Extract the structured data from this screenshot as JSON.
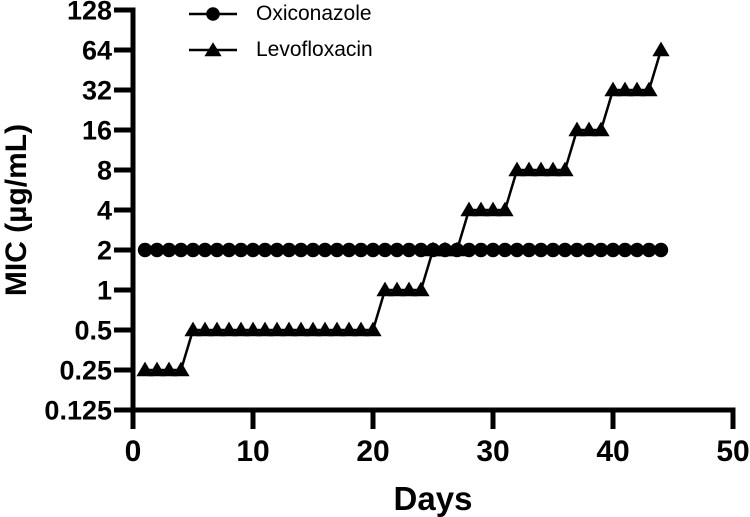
{
  "figure": {
    "background_color": "#ffffff",
    "ink_color": "#000000"
  },
  "legend": {
    "items": [
      {
        "label": "Oxiconazole",
        "marker": "circle-marker-icon"
      },
      {
        "label": "Levofloxacin",
        "marker": "triangle-marker-icon"
      }
    ]
  },
  "chart_data": {
    "type": "line",
    "title": "",
    "xlabel": "Days",
    "ylabel": "MIC (µg/mL)",
    "x_axis": {
      "min": 0,
      "max": 50,
      "tick_labels": [
        "0",
        "10",
        "20",
        "30",
        "40",
        "50"
      ]
    },
    "y_axis": {
      "scale": "log2",
      "min": 0.125,
      "max": 128,
      "tick_labels": [
        "128",
        "64",
        "32",
        "16",
        "8",
        "4",
        "2",
        "1",
        "0.5",
        "0.25",
        "0.125"
      ]
    },
    "grid": false,
    "legend_position": "top-left-inside",
    "series": [
      {
        "name": "Oxiconazole",
        "marker": "circle",
        "color": "#000000",
        "runs": [
          {
            "mic": 2,
            "from_day": 1,
            "to_day": 44
          }
        ]
      },
      {
        "name": "Levofloxacin",
        "marker": "triangle",
        "color": "#000000",
        "runs": [
          {
            "mic": 0.25,
            "from_day": 1,
            "to_day": 4
          },
          {
            "mic": 0.5,
            "from_day": 5,
            "to_day": 20
          },
          {
            "mic": 1,
            "from_day": 21,
            "to_day": 24
          },
          {
            "mic": 2,
            "from_day": 25,
            "to_day": 27
          },
          {
            "mic": 4,
            "from_day": 28,
            "to_day": 31
          },
          {
            "mic": 8,
            "from_day": 32,
            "to_day": 36
          },
          {
            "mic": 16,
            "from_day": 37,
            "to_day": 39
          },
          {
            "mic": 32,
            "from_day": 40,
            "to_day": 43
          },
          {
            "mic": 64,
            "from_day": 44,
            "to_day": 44
          }
        ]
      }
    ]
  }
}
